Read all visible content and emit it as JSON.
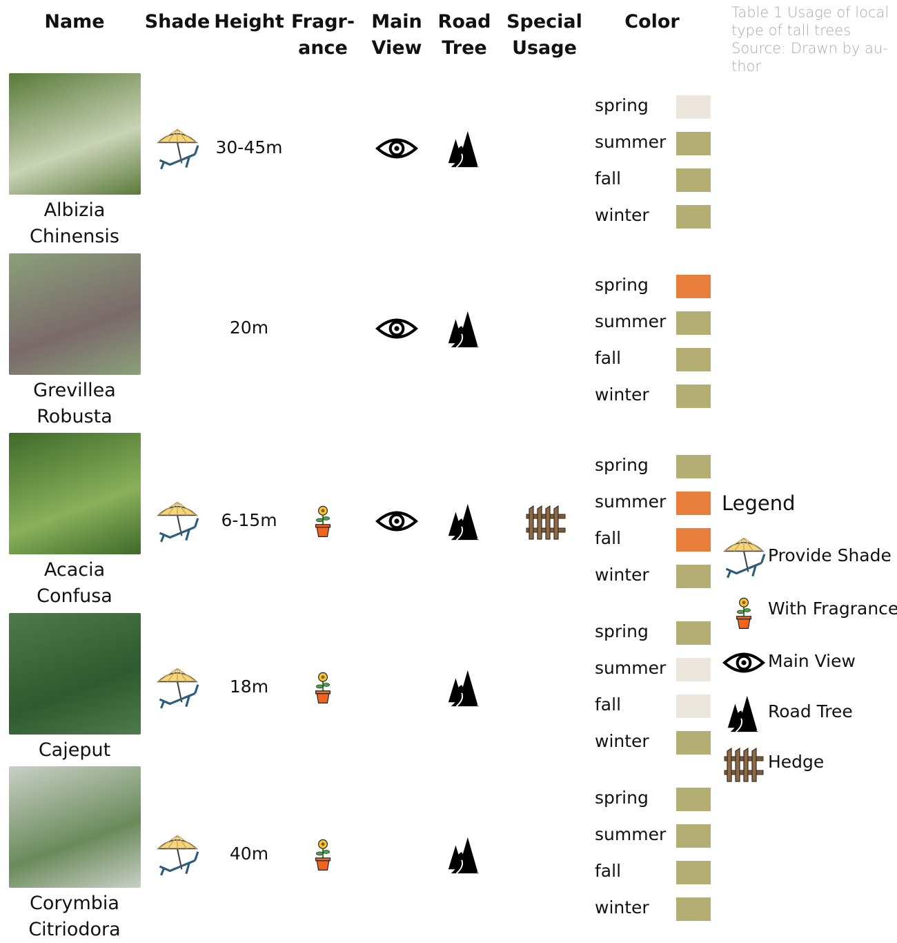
{
  "header": {
    "columns": [
      [
        "Name"
      ],
      [
        "Shade"
      ],
      [
        "Height"
      ],
      [
        "Fragr-",
        "ance"
      ],
      [
        "Main",
        "View"
      ],
      [
        "Road",
        "Tree"
      ],
      [
        "Special",
        "Usage"
      ],
      [
        "Color"
      ]
    ],
    "caption": [
      "Table 1 Usage of local",
      "type of tall trees",
      "Source: Drawn by au-",
      "thor"
    ]
  },
  "seasons": [
    "spring",
    "summer",
    "fall",
    "winter"
  ],
  "rows": [
    {
      "name": "Albizia Chinensis",
      "shade": true,
      "height": "30-45m",
      "fragrance": false,
      "main_view": true,
      "road_tree": true,
      "special_usage": null,
      "colors": [
        "#ebe7dc",
        "#b5ae74",
        "#b5ae74",
        "#b5ae74"
      ]
    },
    {
      "name": "Grevillea Robusta",
      "shade": false,
      "height": "20m",
      "fragrance": false,
      "main_view": true,
      "road_tree": true,
      "special_usage": null,
      "colors": [
        "#e77e3c",
        "#b5ae74",
        "#b5ae74",
        "#b5ae74"
      ]
    },
    {
      "name": "Acacia Confusa",
      "shade": true,
      "height": "6-15m",
      "fragrance": true,
      "main_view": true,
      "road_tree": true,
      "special_usage": "hedge",
      "colors": [
        "#b5ae74",
        "#e77e3c",
        "#e77e3c",
        "#b5ae74"
      ]
    },
    {
      "name": "Cajeput",
      "shade": true,
      "height": "18m",
      "fragrance": true,
      "main_view": false,
      "road_tree": true,
      "special_usage": null,
      "colors": [
        "#b5ae74",
        "#ebe7dc",
        "#ebe7dc",
        "#b5ae74"
      ]
    },
    {
      "name": "Corymbia Citriodora",
      "shade": true,
      "height": "40m",
      "fragrance": true,
      "main_view": false,
      "road_tree": true,
      "special_usage": null,
      "colors": [
        "#b5ae74",
        "#b5ae74",
        "#b5ae74",
        "#b5ae74"
      ]
    }
  ],
  "legend": {
    "title": "Legend",
    "items": [
      {
        "icon": "shade",
        "label": "Provide Shade"
      },
      {
        "icon": "fragrance",
        "label": "With Fragrance"
      },
      {
        "icon": "eye",
        "label": "Main View"
      },
      {
        "icon": "road",
        "label": "Road Tree"
      },
      {
        "icon": "hedge",
        "label": "Hedge"
      }
    ]
  }
}
